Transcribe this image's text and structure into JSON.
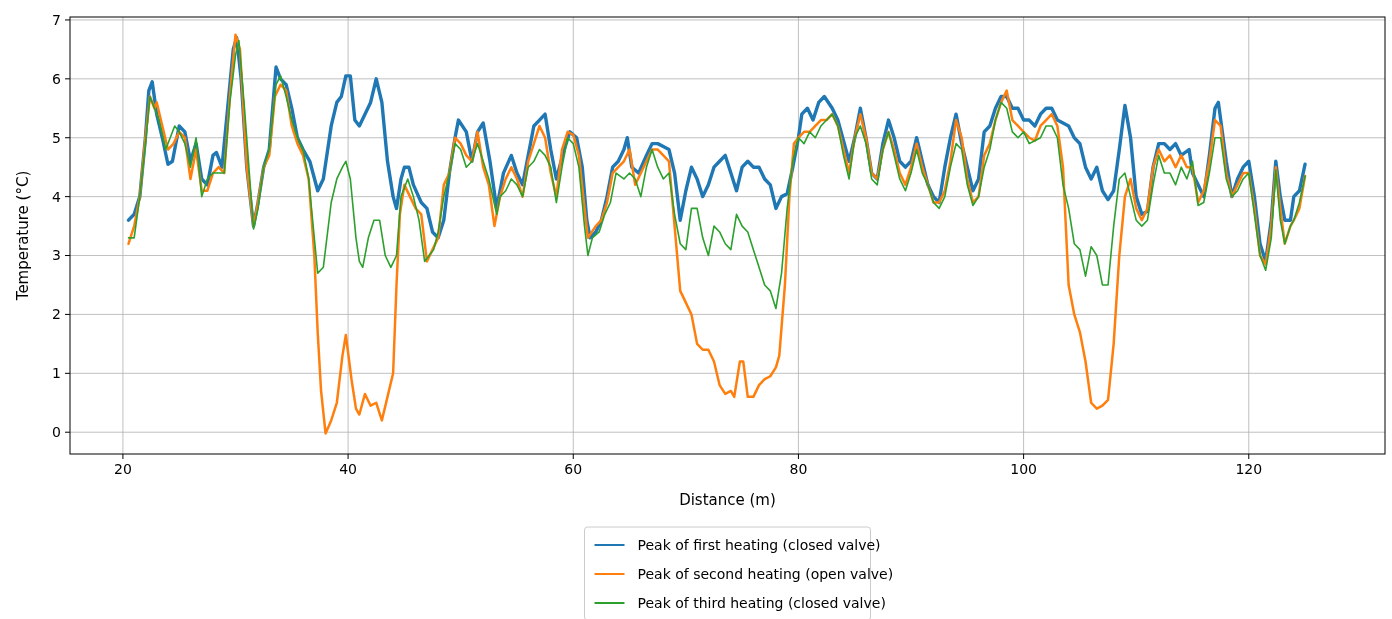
{
  "chart_data": {
    "type": "line",
    "xlabel": "Distance (m)",
    "ylabel": "Temperature (°C)",
    "xlim": [
      15.3,
      132.1
    ],
    "ylim": [
      -0.37,
      7.05
    ],
    "xticks": [
      20,
      40,
      60,
      80,
      100,
      120
    ],
    "yticks": [
      0,
      1,
      2,
      3,
      4,
      5,
      6,
      7
    ],
    "grid": true,
    "legend": "bottom",
    "series": [
      {
        "name": "Peak of first heating (closed valve)",
        "color": "#1f77b4",
        "x": [
          20.5,
          21,
          21.5,
          22,
          22.3,
          22.6,
          23,
          23.5,
          24,
          24.4,
          25,
          25.5,
          26,
          26.5,
          27,
          27.5,
          28,
          28.3,
          28.8,
          29.3,
          29.8,
          30.1,
          30.5,
          31,
          31.6,
          32,
          32.5,
          33,
          33.6,
          34,
          34.5,
          35,
          35.5,
          36,
          36.6,
          37.3,
          37.8,
          38.5,
          39,
          39.4,
          39.8,
          40.2,
          40.6,
          41,
          41.5,
          42,
          42.5,
          43,
          43.5,
          44,
          44.3,
          44.7,
          45,
          45.4,
          45.8,
          46.5,
          47,
          47.5,
          48,
          48.5,
          49,
          49.5,
          49.8,
          50.5,
          51,
          51.5,
          52,
          52.6,
          53.2,
          53.8,
          54.5,
          55,
          55.5,
          56,
          56.5,
          57,
          57.5,
          58,
          58.5,
          59.2,
          59.7,
          60.3,
          60.8,
          61.2,
          61.5,
          62,
          62.5,
          63,
          63.5,
          64,
          64.5,
          64.8,
          65.2,
          65.8,
          66.5,
          67,
          67.5,
          68,
          68.5,
          69,
          69.5,
          70,
          70.5,
          71,
          71.5,
          72,
          72.5,
          73,
          73.5,
          74,
          74.5,
          75,
          75.5,
          76,
          76.5,
          77,
          77.5,
          78,
          78.5,
          79,
          79.5,
          80,
          80.3,
          80.8,
          81.3,
          81.8,
          82.3,
          83,
          83.5,
          84.5,
          85,
          85.5,
          86,
          86.5,
          87,
          87.5,
          88,
          88.5,
          89,
          89.5,
          90,
          90.5,
          91,
          91.5,
          92,
          92.5,
          93,
          93.5,
          94,
          94.5,
          95,
          95.5,
          96,
          96.5,
          97,
          97.5,
          98,
          98.5,
          99,
          99.5,
          100,
          100.5,
          101,
          101.5,
          102,
          102.5,
          103,
          104,
          104.5,
          105,
          105.5,
          106,
          106.5,
          107,
          107.5,
          108,
          108.5,
          109,
          109.5,
          110,
          110.5,
          111,
          111.5,
          112,
          112.5,
          113,
          113.5,
          114,
          114.7,
          115,
          115.5,
          116,
          116.5,
          117,
          117.3,
          118,
          118.5,
          119,
          119.5,
          120,
          120.5,
          121,
          121.5,
          122,
          122.4,
          122.8,
          123.2,
          123.7,
          124,
          124.5,
          125
        ],
        "values": [
          3.6,
          3.7,
          4.0,
          5.0,
          5.8,
          5.95,
          5.4,
          5.0,
          4.55,
          4.6,
          5.2,
          5.1,
          4.6,
          4.9,
          4.3,
          4.2,
          4.7,
          4.75,
          4.5,
          5.5,
          6.5,
          6.7,
          6.0,
          4.5,
          3.5,
          3.9,
          4.5,
          4.8,
          6.2,
          6.0,
          5.9,
          5.5,
          5.0,
          4.8,
          4.6,
          4.1,
          4.3,
          5.2,
          5.6,
          5.7,
          6.05,
          6.05,
          5.3,
          5.2,
          5.4,
          5.6,
          6.0,
          5.6,
          4.6,
          4.0,
          3.8,
          4.3,
          4.5,
          4.5,
          4.2,
          3.9,
          3.8,
          3.4,
          3.3,
          3.6,
          4.4,
          5.0,
          5.3,
          5.1,
          4.6,
          5.1,
          5.25,
          4.6,
          3.8,
          4.4,
          4.7,
          4.4,
          4.2,
          4.7,
          5.2,
          5.3,
          5.4,
          4.8,
          4.3,
          4.8,
          5.1,
          5.0,
          4.5,
          3.6,
          3.3,
          3.4,
          3.6,
          4.0,
          4.5,
          4.6,
          4.8,
          5.0,
          4.5,
          4.4,
          4.7,
          4.9,
          4.9,
          4.85,
          4.8,
          4.4,
          3.6,
          4.1,
          4.5,
          4.3,
          4.0,
          4.2,
          4.5,
          4.6,
          4.7,
          4.4,
          4.1,
          4.5,
          4.6,
          4.5,
          4.5,
          4.3,
          4.2,
          3.8,
          4.0,
          4.05,
          4.5,
          5.0,
          5.4,
          5.5,
          5.3,
          5.6,
          5.7,
          5.5,
          5.3,
          4.6,
          5.0,
          5.5,
          5.0,
          4.4,
          4.3,
          4.9,
          5.3,
          5.0,
          4.6,
          4.5,
          4.6,
          5.0,
          4.6,
          4.2,
          4.0,
          3.9,
          4.5,
          5.0,
          5.4,
          4.9,
          4.5,
          4.1,
          4.3,
          5.1,
          5.2,
          5.5,
          5.7,
          5.7,
          5.5,
          5.5,
          5.3,
          5.3,
          5.2,
          5.4,
          5.5,
          5.5,
          5.3,
          5.2,
          5.0,
          4.9,
          4.5,
          4.3,
          4.5,
          4.1,
          3.95,
          4.1,
          4.8,
          5.55,
          5.0,
          4.0,
          3.7,
          3.75,
          4.5,
          4.9,
          4.9,
          4.8,
          4.9,
          4.7,
          4.8,
          4.4,
          4.2,
          4.0,
          4.7,
          5.5,
          5.6,
          4.6,
          4.0,
          4.3,
          4.5,
          4.6,
          4.0,
          3.2,
          2.9,
          3.6,
          4.6,
          4.0,
          3.6,
          3.6,
          4.0,
          4.1,
          4.55
        ]
      },
      {
        "name": "Peak of second heating (open valve)",
        "color": "#ff7f0e",
        "x": [
          20.5,
          21,
          21.5,
          22,
          22.4,
          22.8,
          23,
          23.5,
          24,
          24.5,
          25,
          25.5,
          26,
          26.5,
          27,
          27.5,
          28,
          28.5,
          29,
          29.5,
          30,
          30.4,
          31,
          31.6,
          32,
          32.5,
          33,
          33.5,
          34,
          34.5,
          35,
          35.5,
          36,
          36.5,
          37,
          37.3,
          37.6,
          38,
          38.5,
          39,
          39.5,
          39.8,
          40.3,
          40.7,
          41,
          41.5,
          42,
          42.5,
          43,
          43.5,
          44,
          44.3,
          44.6,
          45,
          45.5,
          46,
          46.5,
          47,
          47.5,
          48,
          48.5,
          49,
          49.5,
          50,
          50.5,
          51,
          51.5,
          52,
          52.5,
          53,
          53.5,
          54,
          54.5,
          55,
          55.5,
          56,
          56.5,
          57,
          57.5,
          58,
          58.5,
          59,
          59.5,
          60,
          60.5,
          61,
          61.3,
          62,
          62.5,
          63,
          63.5,
          64,
          64.5,
          65,
          65.5,
          66.5,
          67,
          67.5,
          68,
          68.5,
          69,
          69.5,
          70,
          70.5,
          71,
          71.5,
          72,
          72.5,
          73,
          73.5,
          74,
          74.3,
          74.8,
          75.1,
          75.5,
          76,
          76.5,
          77,
          77.5,
          78,
          78.3,
          78.8,
          79.2,
          79.6,
          80,
          80.5,
          81,
          81.5,
          82,
          82.5,
          83,
          83.5,
          84,
          84.5,
          85,
          85.5,
          86,
          86.5,
          87,
          87.5,
          88,
          88.5,
          89,
          89.5,
          90,
          90.5,
          91,
          91.5,
          92,
          92.5,
          93,
          93.5,
          94,
          94.5,
          95,
          95.5,
          96,
          96.5,
          97,
          97.5,
          98,
          98.5,
          99,
          99.5,
          100,
          100.5,
          101,
          101.5,
          102,
          102.5,
          103,
          103.5,
          104,
          104.5,
          105,
          105.5,
          106,
          106.5,
          107,
          107.5,
          108,
          108.5,
          109,
          109.5,
          110,
          110.5,
          111,
          111.5,
          112,
          112.5,
          113,
          113.5,
          114,
          114.5,
          115,
          115.5,
          116,
          116.5,
          117,
          117.5,
          118,
          118.5,
          119,
          119.5,
          120,
          120.5,
          121,
          121.5,
          122,
          122.4,
          122.8,
          123.2,
          123.7,
          124,
          124.5,
          125
        ],
        "values": [
          3.2,
          3.5,
          4.0,
          5.0,
          5.7,
          5.5,
          5.6,
          5.2,
          4.8,
          4.9,
          5.1,
          5.0,
          4.3,
          4.8,
          4.1,
          4.1,
          4.4,
          4.5,
          4.4,
          5.7,
          6.75,
          6.5,
          4.5,
          3.5,
          3.9,
          4.5,
          4.7,
          5.7,
          5.9,
          5.8,
          5.2,
          4.9,
          4.7,
          4.3,
          3.0,
          1.7,
          0.7,
          -0.02,
          0.2,
          0.5,
          1.3,
          1.65,
          0.9,
          0.4,
          0.3,
          0.65,
          0.45,
          0.5,
          0.2,
          0.6,
          1.0,
          2.5,
          3.7,
          4.2,
          4.0,
          3.8,
          3.7,
          2.9,
          3.1,
          3.3,
          4.2,
          4.4,
          5.0,
          4.9,
          4.7,
          4.6,
          5.1,
          4.5,
          4.2,
          3.5,
          4.0,
          4.3,
          4.5,
          4.3,
          4.0,
          4.6,
          4.9,
          5.2,
          5.0,
          4.4,
          4.0,
          4.8,
          5.1,
          5.05,
          4.7,
          3.8,
          3.3,
          3.5,
          3.6,
          3.9,
          4.4,
          4.5,
          4.6,
          4.8,
          4.2,
          4.6,
          4.8,
          4.8,
          4.7,
          4.6,
          3.5,
          2.4,
          2.2,
          2.0,
          1.5,
          1.4,
          1.4,
          1.2,
          0.8,
          0.65,
          0.7,
          0.6,
          1.2,
          1.2,
          0.6,
          0.6,
          0.8,
          0.9,
          0.95,
          1.1,
          1.3,
          2.5,
          4.0,
          4.9,
          5.0,
          5.1,
          5.1,
          5.2,
          5.3,
          5.3,
          5.4,
          5.2,
          4.8,
          4.4,
          5.0,
          5.4,
          5.0,
          4.4,
          4.3,
          4.8,
          5.1,
          4.8,
          4.4,
          4.2,
          4.5,
          4.9,
          4.5,
          4.2,
          3.9,
          3.9,
          4.1,
          4.6,
          5.3,
          5.0,
          4.3,
          3.9,
          4.0,
          4.7,
          4.9,
          5.3,
          5.6,
          5.8,
          5.3,
          5.2,
          5.1,
          5.0,
          4.95,
          5.2,
          5.3,
          5.4,
          5.2,
          4.5,
          2.5,
          2.0,
          1.7,
          1.2,
          0.5,
          0.4,
          0.45,
          0.55,
          1.5,
          3.0,
          4.0,
          4.3,
          3.8,
          3.6,
          3.8,
          4.5,
          4.8,
          4.6,
          4.7,
          4.5,
          4.7,
          4.5,
          4.5,
          3.9,
          4.1,
          4.6,
          5.3,
          5.2,
          4.4,
          4.0,
          4.2,
          4.4,
          4.4,
          3.8,
          3.0,
          2.85,
          3.5,
          4.5,
          3.8,
          3.2,
          3.5,
          3.6,
          3.8,
          4.35
        ]
      },
      {
        "name": "Peak of third heating (closed valve)",
        "color": "#2ca02c",
        "x": [
          20.5,
          21,
          21.5,
          22,
          22.4,
          22.8,
          23.2,
          23.8,
          24.2,
          24.6,
          25,
          25.5,
          26,
          26.5,
          27,
          27.5,
          28,
          28.5,
          29,
          29.5,
          30,
          30.3,
          30.8,
          31.6,
          32,
          32.5,
          33,
          33.6,
          34,
          34.5,
          35,
          35.5,
          36,
          36.5,
          37.3,
          37.8,
          38.5,
          39,
          39.5,
          39.8,
          40.2,
          40.7,
          41,
          41.3,
          41.8,
          42.3,
          42.8,
          43.3,
          43.8,
          44.3,
          44.7,
          45.3,
          45.8,
          46.3,
          46.8,
          47.2,
          47.6,
          48,
          48.5,
          49,
          49.5,
          50,
          50.5,
          51,
          51.5,
          52,
          52.5,
          53.2,
          53.5,
          54,
          54.5,
          55,
          55.5,
          56,
          56.5,
          57,
          57.5,
          58,
          58.5,
          59,
          59.5,
          60,
          60.5,
          61,
          61.3,
          61.7,
          62.3,
          62.8,
          63.3,
          63.8,
          64.5,
          65,
          65.5,
          66,
          66.5,
          67,
          67.5,
          68,
          68.5,
          69,
          69.5,
          70,
          70.5,
          71,
          71.5,
          72,
          72.5,
          73,
          73.5,
          74,
          74.5,
          75,
          75.5,
          76,
          76.5,
          77,
          77.5,
          78,
          78.5,
          79,
          79.5,
          80,
          80.5,
          81,
          81.5,
          82,
          82.5,
          83,
          83.5,
          84,
          84.5,
          85,
          85.5,
          86,
          86.5,
          87,
          87.5,
          88,
          88.5,
          89,
          89.5,
          90,
          90.5,
          91,
          91.5,
          92,
          92.5,
          93,
          93.5,
          94,
          94.5,
          95,
          95.5,
          96,
          96.5,
          97,
          97.5,
          98,
          98.5,
          99,
          99.5,
          100,
          100.5,
          101,
          101.5,
          102,
          102.5,
          103,
          103.5,
          104,
          104.5,
          105,
          105.5,
          106,
          106.5,
          107,
          107.5,
          108,
          108.5,
          109,
          109.5,
          110,
          110.5,
          111,
          111.5,
          112,
          112.5,
          113,
          113.5,
          114,
          114.5,
          115,
          115.5,
          116,
          116.5,
          117,
          117.5,
          118,
          118.5,
          119,
          119.5,
          120,
          120.5,
          121,
          121.5,
          122,
          122.4,
          122.8,
          123.2,
          123.7,
          124,
          124.5,
          125
        ],
        "values": [
          3.3,
          3.3,
          4.0,
          4.9,
          5.7,
          5.5,
          5.3,
          4.8,
          5.0,
          5.2,
          5.1,
          4.9,
          4.5,
          5.0,
          4.0,
          4.3,
          4.4,
          4.4,
          4.4,
          5.6,
          6.4,
          6.65,
          5.5,
          3.45,
          3.8,
          4.5,
          4.8,
          5.9,
          6.05,
          5.7,
          5.3,
          5.0,
          4.8,
          4.3,
          2.7,
          2.8,
          3.9,
          4.3,
          4.5,
          4.6,
          4.3,
          3.3,
          2.9,
          2.8,
          3.3,
          3.6,
          3.6,
          3.0,
          2.8,
          3.0,
          4.0,
          4.3,
          4.0,
          3.6,
          2.9,
          3.0,
          3.1,
          3.4,
          4.0,
          4.4,
          4.9,
          4.8,
          4.5,
          4.6,
          4.9,
          4.6,
          4.3,
          3.7,
          4.0,
          4.1,
          4.3,
          4.2,
          4.0,
          4.5,
          4.6,
          4.8,
          4.7,
          4.5,
          3.9,
          4.5,
          5.0,
          4.9,
          4.5,
          3.5,
          3.0,
          3.3,
          3.4,
          3.7,
          3.9,
          4.4,
          4.3,
          4.4,
          4.3,
          4.0,
          4.5,
          4.8,
          4.5,
          4.3,
          4.4,
          3.7,
          3.2,
          3.1,
          3.8,
          3.8,
          3.3,
          3.0,
          3.5,
          3.4,
          3.2,
          3.1,
          3.7,
          3.5,
          3.4,
          3.1,
          2.8,
          2.5,
          2.4,
          2.1,
          2.7,
          3.8,
          4.6,
          5.0,
          4.9,
          5.1,
          5.0,
          5.2,
          5.3,
          5.4,
          5.2,
          4.7,
          4.3,
          5.0,
          5.2,
          4.9,
          4.3,
          4.2,
          4.8,
          5.1,
          4.7,
          4.3,
          4.1,
          4.4,
          4.8,
          4.4,
          4.2,
          3.9,
          3.8,
          4.0,
          4.5,
          4.9,
          4.8,
          4.2,
          3.85,
          4.0,
          4.5,
          4.8,
          5.3,
          5.6,
          5.5,
          5.1,
          5.0,
          5.1,
          4.9,
          4.95,
          5.0,
          5.2,
          5.2,
          5.0,
          4.2,
          3.8,
          3.2,
          3.1,
          2.65,
          3.15,
          3.0,
          2.5,
          2.5,
          3.5,
          4.3,
          4.4,
          4.0,
          3.6,
          3.5,
          3.6,
          4.2,
          4.7,
          4.4,
          4.4,
          4.2,
          4.5,
          4.3,
          4.6,
          3.85,
          3.9,
          4.4,
          5.0,
          5.0,
          4.3,
          4.0,
          4.1,
          4.3,
          4.4,
          3.7,
          3.0,
          2.75,
          3.3,
          4.45,
          3.6,
          3.2,
          3.5,
          3.6,
          3.9,
          4.35
        ]
      }
    ]
  }
}
